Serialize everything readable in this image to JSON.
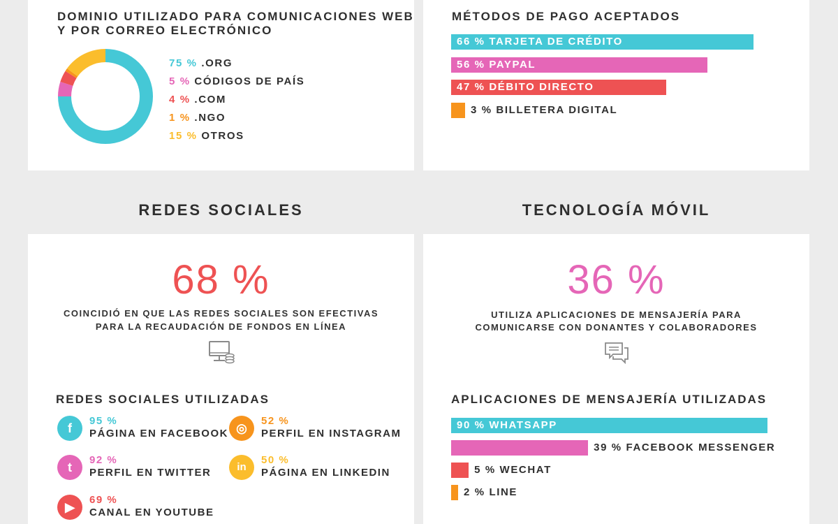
{
  "colors": {
    "teal": "#45c8d6",
    "pink": "#e566b7",
    "red": "#ee5253",
    "orange": "#f7941d",
    "yellow": "#fbbd2c"
  },
  "domain_card": {
    "title_line1": "DOMINIO UTILIZADO PARA COMUNICACIONES WEB",
    "title_line2": "Y POR CORREO ELECTRÓNICO",
    "items": [
      {
        "pct": "75 %",
        "label": ".ORG"
      },
      {
        "pct": "5 %",
        "label": "CÓDIGOS DE PAÍS"
      },
      {
        "pct": "4 %",
        "label": ".COM"
      },
      {
        "pct": "1 %",
        "label": ".NGO"
      },
      {
        "pct": "15 %",
        "label": "OTROS"
      }
    ]
  },
  "payment_card": {
    "title": "MÉTODOS DE PAGO ACEPTADOS",
    "items": [
      {
        "text": "66 % TARJETA DE CRÉDITO"
      },
      {
        "text": "56 % PAYPAL"
      },
      {
        "text": "47 % DÉBITO DIRECTO"
      },
      {
        "text": "3 % BILLETERA DIGITAL"
      }
    ]
  },
  "social": {
    "section_title": "REDES SOCIALES",
    "big_stat": "68 %",
    "desc_line1": "COINCIDIÓ EN QUE LAS REDES SOCIALES SON EFECTIVAS",
    "desc_line2": "PARA LA RECAUDACIÓN DE FONDOS EN LÍNEA",
    "list_title": "REDES SOCIALES UTILIZADAS",
    "items": [
      {
        "pct": "95 %",
        "name": "PÁGINA EN FACEBOOK",
        "icon": "facebook-icon",
        "glyph": "f"
      },
      {
        "pct": "52 %",
        "name": "PERFIL EN INSTAGRAM",
        "icon": "instagram-icon",
        "glyph": "◎"
      },
      {
        "pct": "92 %",
        "name": "PERFIL EN TWITTER",
        "icon": "twitter-icon",
        "glyph": "t"
      },
      {
        "pct": "50 %",
        "name": "PÁGINA EN LINKEDIN",
        "icon": "linkedin-icon",
        "glyph": "in"
      },
      {
        "pct": "69 %",
        "name": "CANAL EN YOUTUBE",
        "icon": "youtube-icon",
        "glyph": "▶"
      }
    ]
  },
  "mobile": {
    "section_title": "TECNOLOGÍA MÓVIL",
    "big_stat": "36 %",
    "desc_line1": "UTILIZA APLICACIONES DE MENSAJERÍA PARA",
    "desc_line2": "COMUNICARSE CON DONANTES Y COLABORADORES",
    "list_title": "APLICACIONES DE MENSAJERÍA UTILIZADAS",
    "items": [
      {
        "text": "90 % WHATSAPP"
      },
      {
        "text": "39 % FACEBOOK MESSENGER"
      },
      {
        "text": "5 % WECHAT"
      },
      {
        "text": "2 % LINE"
      }
    ]
  },
  "chart_data": [
    {
      "type": "pie",
      "title": "DOMINIO UTILIZADO PARA COMUNICACIONES WEB Y POR CORREO ELECTRÓNICO",
      "categories": [
        ".ORG",
        "CÓDIGOS DE PAÍS",
        ".COM",
        ".NGO",
        "OTROS"
      ],
      "values": [
        75,
        5,
        4,
        1,
        15
      ],
      "colors": [
        "#45c8d6",
        "#e566b7",
        "#ee5253",
        "#f7941d",
        "#fbbd2c"
      ]
    },
    {
      "type": "bar",
      "title": "MÉTODOS DE PAGO ACEPTADOS",
      "categories": [
        "TARJETA DE CRÉDITO",
        "PAYPAL",
        "DÉBITO DIRECTO",
        "BILLETERA DIGITAL"
      ],
      "values": [
        66,
        56,
        47,
        3
      ],
      "colors": [
        "#45c8d6",
        "#e566b7",
        "#ee5253",
        "#f7941d"
      ]
    },
    {
      "type": "bar",
      "title": "REDES SOCIALES UTILIZADAS",
      "categories": [
        "PÁGINA EN FACEBOOK",
        "PERFIL EN INSTAGRAM",
        "PERFIL EN TWITTER",
        "PÁGINA EN LINKEDIN",
        "CANAL EN YOUTUBE"
      ],
      "values": [
        95,
        52,
        92,
        50,
        69
      ]
    },
    {
      "type": "bar",
      "title": "APLICACIONES DE MENSAJERÍA UTILIZADAS",
      "categories": [
        "WHATSAPP",
        "FACEBOOK MESSENGER",
        "WECHAT",
        "LINE"
      ],
      "values": [
        90,
        39,
        5,
        2
      ],
      "colors": [
        "#45c8d6",
        "#e566b7",
        "#ee5253",
        "#f7941d"
      ]
    }
  ]
}
